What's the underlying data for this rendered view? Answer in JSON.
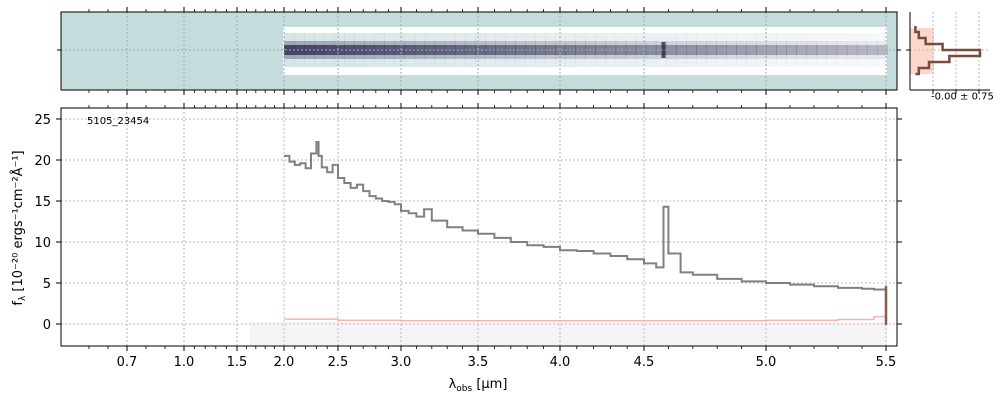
{
  "chart_data": [
    {
      "panel": "2d-spectrum",
      "type": "heatmap",
      "description_colors": {
        "background": "#c4dcdc",
        "trace": "#3a3a5e"
      },
      "x_range": [
        2.0,
        5.5
      ],
      "y_ticks": []
    },
    {
      "panel": "spatial-profile",
      "type": "line",
      "annotation": "-0.00 ± 0.75",
      "profile": [
        0.05,
        0.1,
        0.2,
        0.45,
        1.0,
        0.55,
        0.25,
        0.1,
        0.05
      ]
    },
    {
      "panel": "1d-spectrum",
      "type": "line",
      "label": "5105_23454",
      "xlabel_base": "λ",
      "xlabel_sub": "obs",
      "xlabel_unit": " [μm]",
      "ylabel_base": "f",
      "ylabel_sub": "λ",
      "ylabel_unit": "[10⁻²⁰ ergs⁻¹cm⁻²Å⁻¹]",
      "x_ticks": [
        "0.7",
        "1.0",
        "1.5",
        "2.0",
        "2.5",
        "3.0",
        "3.5",
        "4.0",
        "4.5",
        "5.0",
        "5.5"
      ],
      "x_tick_values": [
        0.7,
        1.0,
        1.5,
        2.0,
        2.5,
        3.0,
        3.5,
        4.0,
        4.5,
        5.0,
        5.5
      ],
      "y_ticks": [
        "0",
        "5",
        "10",
        "15",
        "20",
        "25"
      ],
      "y_tick_values": [
        0,
        5,
        10,
        15,
        20,
        25
      ],
      "ylim": [
        -2.6,
        26.2
      ],
      "grid": true,
      "series": [
        {
          "role": "flux",
          "color": "#808080",
          "x": [
            2.0,
            2.05,
            2.1,
            2.15,
            2.2,
            2.25,
            2.3,
            2.32,
            2.35,
            2.4,
            2.45,
            2.5,
            2.55,
            2.6,
            2.65,
            2.7,
            2.75,
            2.8,
            2.85,
            2.9,
            2.95,
            3.0,
            3.05,
            3.1,
            3.15,
            3.2,
            3.3,
            3.4,
            3.5,
            3.6,
            3.7,
            3.8,
            3.9,
            4.0,
            4.1,
            4.2,
            4.3,
            4.4,
            4.5,
            4.55,
            4.58,
            4.6,
            4.65,
            4.7,
            4.8,
            4.9,
            5.0,
            5.1,
            5.2,
            5.3,
            5.4,
            5.45,
            5.5
          ],
          "y": [
            20.5,
            19.8,
            19.4,
            19.6,
            19.0,
            20.8,
            22.2,
            20.5,
            19.1,
            18.5,
            19.4,
            17.8,
            17.2,
            16.6,
            17.0,
            16.2,
            15.6,
            15.3,
            15.0,
            14.9,
            14.6,
            13.8,
            13.5,
            13.1,
            14.0,
            12.6,
            11.8,
            11.4,
            11.0,
            10.5,
            10.0,
            9.6,
            9.4,
            9.0,
            8.9,
            8.6,
            8.3,
            7.9,
            7.4,
            6.9,
            14.3,
            8.6,
            6.3,
            6.0,
            5.5,
            5.2,
            5.0,
            4.8,
            4.6,
            4.4,
            4.3,
            4.2,
            4.0
          ]
        },
        {
          "role": "error",
          "color": "#f4a6a6",
          "x": [
            2.0,
            2.5,
            3.0,
            3.5,
            4.0,
            4.5,
            5.0,
            5.3,
            5.45,
            5.5
          ],
          "y": [
            0.6,
            0.45,
            0.4,
            0.4,
            0.4,
            0.4,
            0.45,
            0.55,
            0.9,
            1.4
          ]
        }
      ]
    }
  ]
}
